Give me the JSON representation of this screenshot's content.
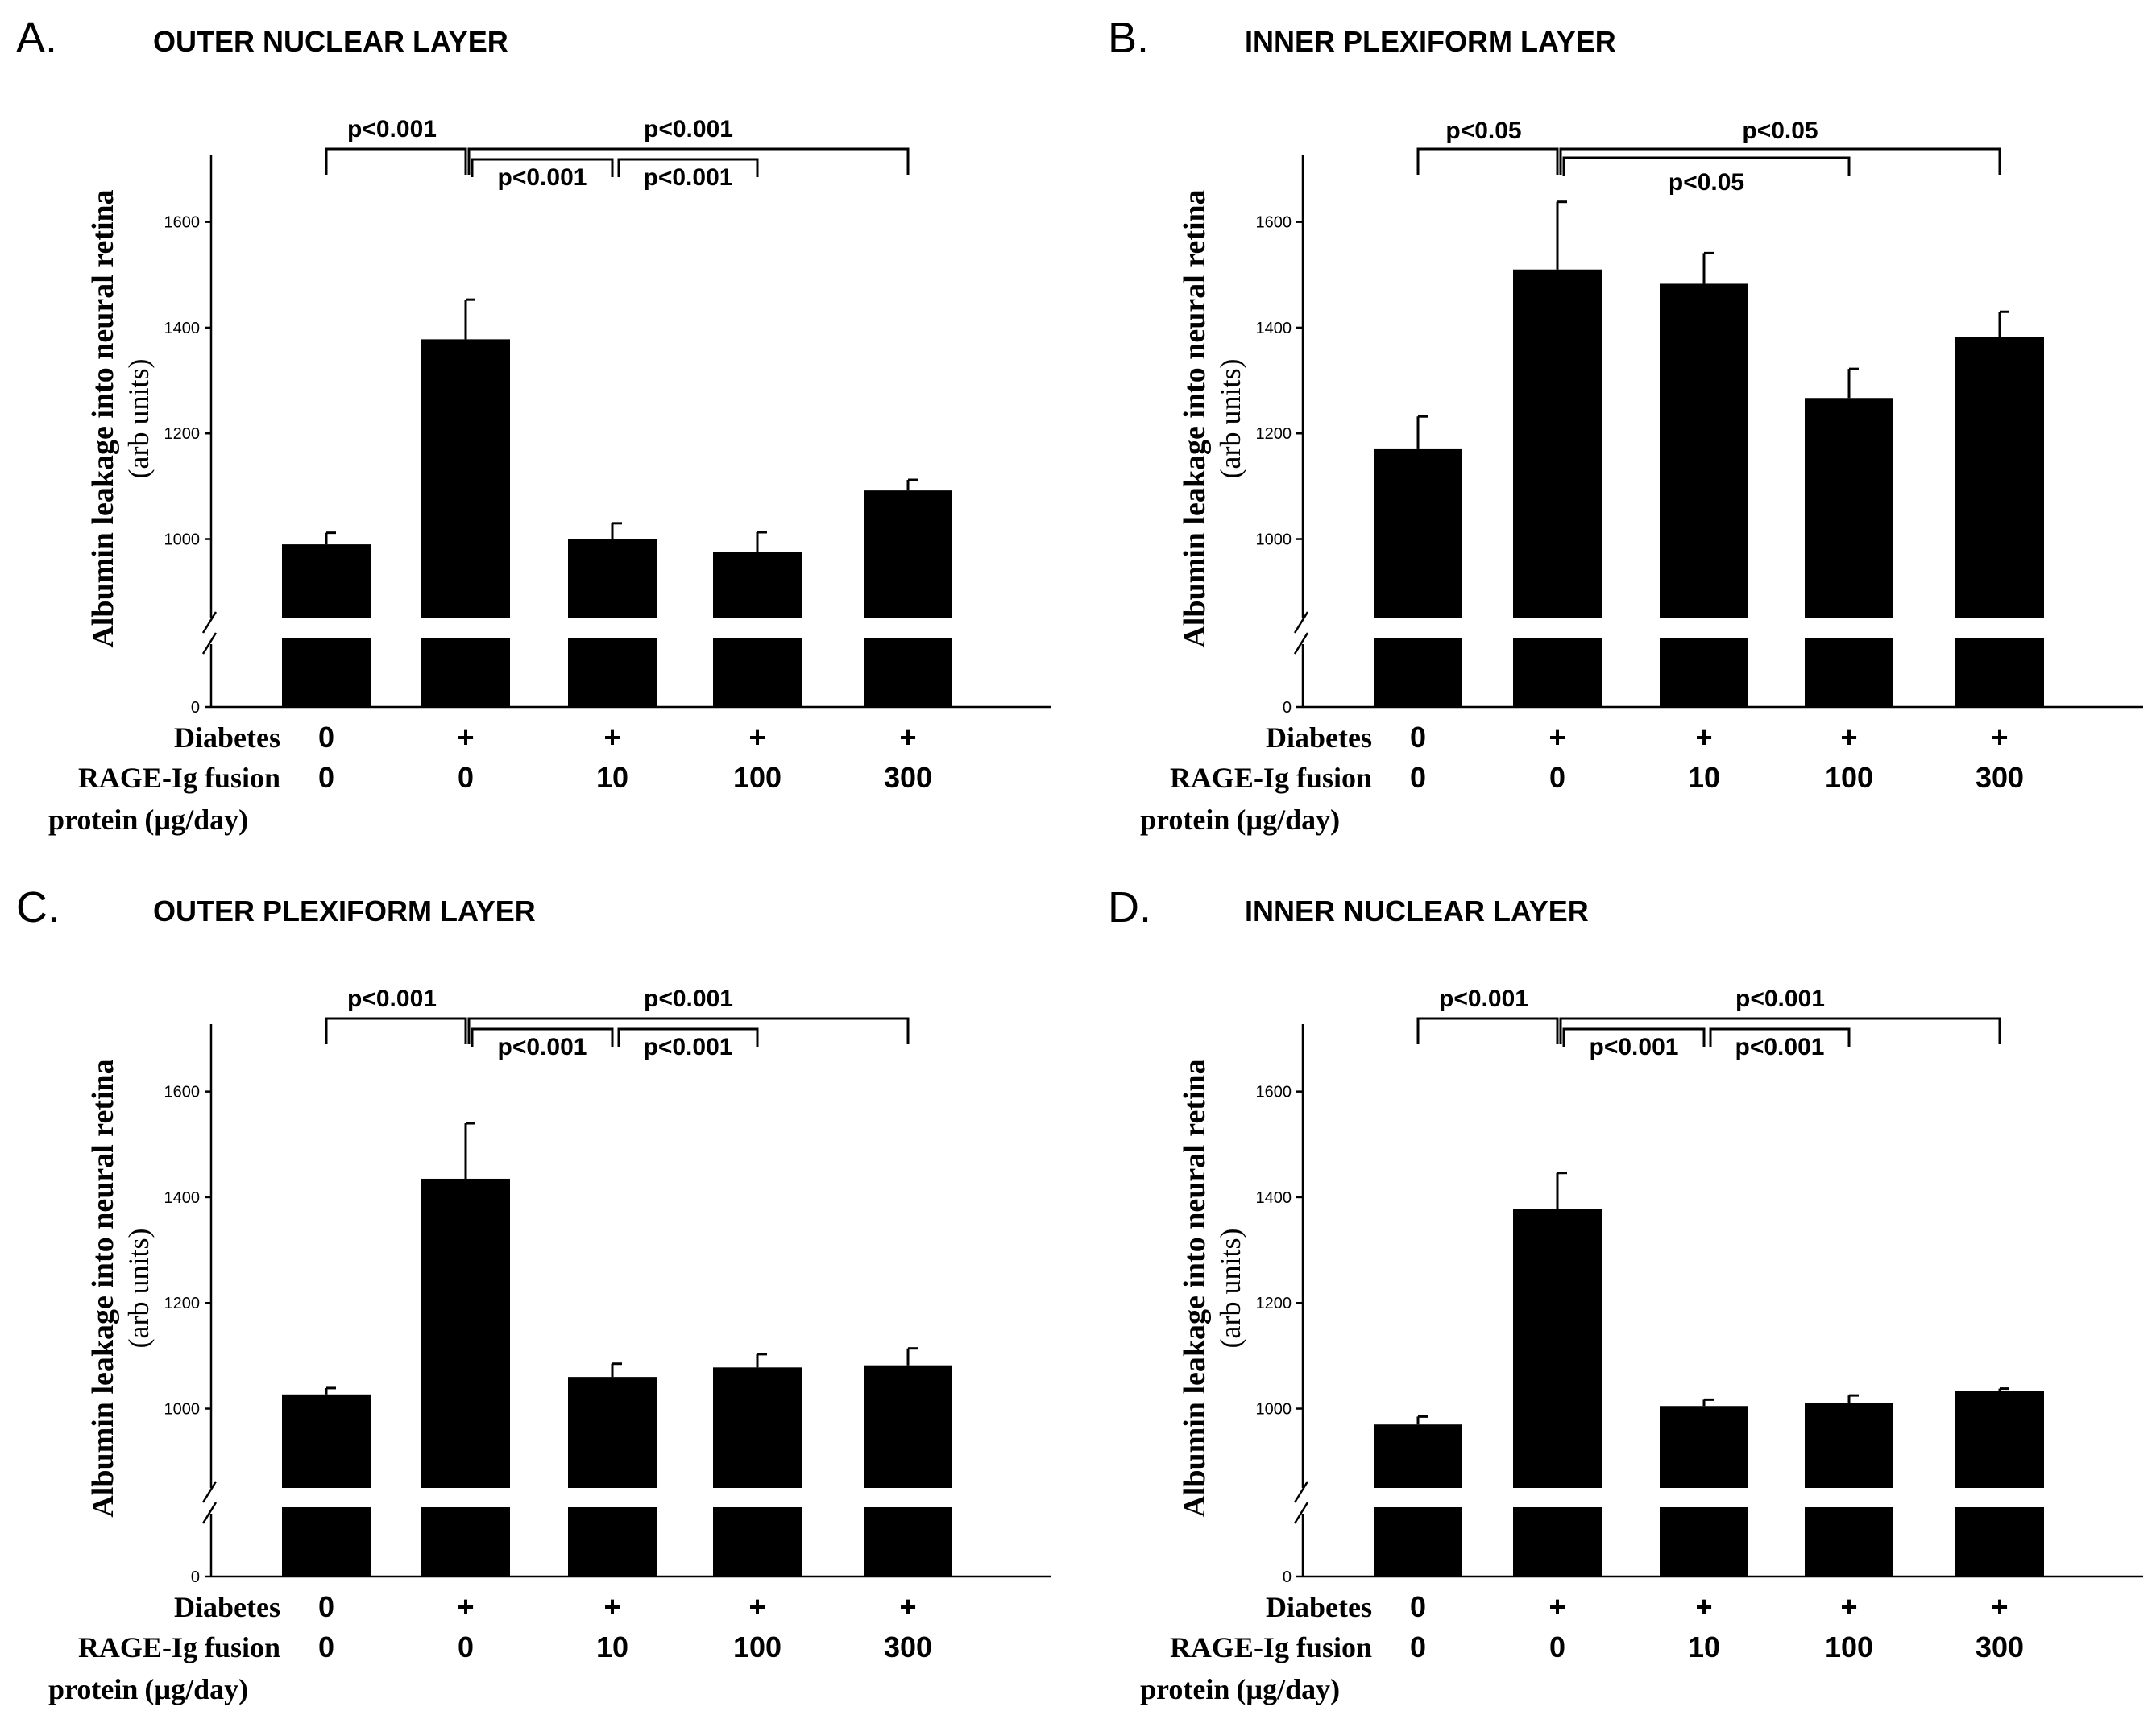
{
  "row_labels": {
    "diabetes": "Diabetes",
    "rage_line1": "RAGE-Ig fusion",
    "rage_line2_bold": "protein",
    "rage_line2_units": "(µg/day)"
  },
  "y_axis": {
    "label": "Albumin leakage into neural retina",
    "sublabel": "(arb units)",
    "ticks": [
      "1000",
      "1200",
      "1400",
      "1600"
    ],
    "zero_tick": "0"
  },
  "chart_data": [
    {
      "type": "bar",
      "letter": "A.",
      "title": "OUTER NUCLEAR LAYER",
      "ylabel": "Albumin leakage into neural retina (arb units)",
      "ylim": [
        850,
        1700
      ],
      "axis_break": [
        0,
        850
      ],
      "diabetes": [
        "0",
        "+",
        "+",
        "+",
        "+"
      ],
      "rage_ig": [
        "0",
        "0",
        "10",
        "100",
        "300"
      ],
      "values": [
        990,
        1378,
        1000,
        975,
        1092
      ],
      "errors": [
        22,
        75,
        30,
        38,
        20
      ],
      "comparisons": [
        {
          "from": 0,
          "to": 1,
          "label": "p<0.001",
          "level": 0
        },
        {
          "from": 1,
          "to": 4,
          "label": "p<0.001",
          "level": 0
        },
        {
          "from": 1,
          "to": 2,
          "label": "p<0.001",
          "level": 1
        },
        {
          "from": 2,
          "to": 3,
          "label": "p<0.001",
          "level": 1
        }
      ]
    },
    {
      "type": "bar",
      "letter": "B.",
      "title": "INNER PLEXIFORM LAYER",
      "ylabel": "Albumin leakage into neural retina (arb units)",
      "ylim": [
        850,
        1700
      ],
      "axis_break": [
        0,
        850
      ],
      "diabetes": [
        "0",
        "+",
        "+",
        "+",
        "+"
      ],
      "rage_ig": [
        "0",
        "0",
        "10",
        "100",
        "300"
      ],
      "values": [
        1170,
        1510,
        1483,
        1267,
        1382
      ],
      "errors": [
        62,
        128,
        58,
        55,
        48
      ],
      "comparisons": [
        {
          "from": 0,
          "to": 1,
          "label": "p<0.05",
          "level": 0
        },
        {
          "from": 1,
          "to": 4,
          "label": "p<0.05",
          "level": 0
        },
        {
          "from": 1,
          "to": 3,
          "label": "p<0.05",
          "level": 1
        }
      ]
    },
    {
      "type": "bar",
      "letter": "C.",
      "title": "OUTER PLEXIFORM LAYER",
      "ylabel": "Albumin leakage into neural retina (arb units)",
      "ylim": [
        850,
        1700
      ],
      "axis_break": [
        0,
        850
      ],
      "diabetes": [
        "0",
        "+",
        "+",
        "+",
        "+"
      ],
      "rage_ig": [
        "0",
        "0",
        "10",
        "100",
        "300"
      ],
      "values": [
        1027,
        1435,
        1060,
        1078,
        1082
      ],
      "errors": [
        12,
        105,
        25,
        25,
        32
      ],
      "comparisons": [
        {
          "from": 0,
          "to": 1,
          "label": "p<0.001",
          "level": 0
        },
        {
          "from": 1,
          "to": 4,
          "label": "p<0.001",
          "level": 0
        },
        {
          "from": 1,
          "to": 2,
          "label": "p<0.001",
          "level": 1
        },
        {
          "from": 2,
          "to": 3,
          "label": "p<0.001",
          "level": 1
        }
      ]
    },
    {
      "type": "bar",
      "letter": "D.",
      "title": "INNER NUCLEAR LAYER",
      "ylabel": "Albumin leakage into neural retina (arb units)",
      "ylim": [
        850,
        1700
      ],
      "axis_break": [
        0,
        850
      ],
      "diabetes": [
        "0",
        "+",
        "+",
        "+",
        "+"
      ],
      "rage_ig": [
        "0",
        "0",
        "10",
        "100",
        "300"
      ],
      "values": [
        970,
        1378,
        1005,
        1010,
        1033
      ],
      "errors": [
        15,
        68,
        12,
        15,
        5
      ],
      "comparisons": [
        {
          "from": 0,
          "to": 1,
          "label": "p<0.001",
          "level": 0
        },
        {
          "from": 1,
          "to": 4,
          "label": "p<0.001",
          "level": 0
        },
        {
          "from": 1,
          "to": 2,
          "label": "p<0.001",
          "level": 1
        },
        {
          "from": 2,
          "to": 3,
          "label": "p<0.001",
          "level": 1
        }
      ]
    }
  ]
}
